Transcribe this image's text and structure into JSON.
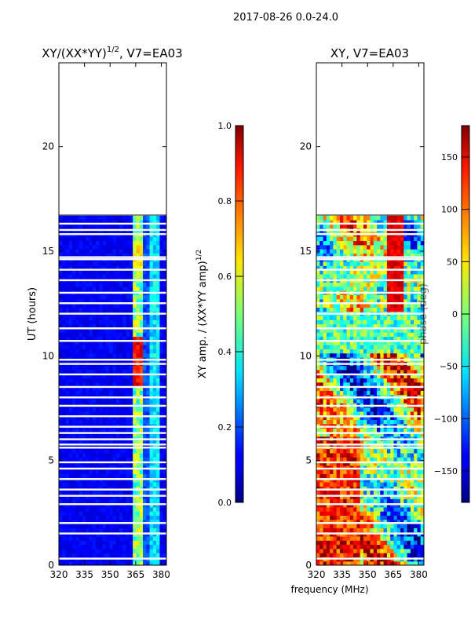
{
  "figure": {
    "suptitle": "2017-08-26 0.0-24.0",
    "shared_xlabel": "frequency (MHz)"
  },
  "chart_data": [
    {
      "type": "heatmap",
      "title_main": "XY/(XX*YY)",
      "title_exp": "1/2",
      "title_suffix": ", V7=EA03",
      "xlabel": "",
      "ylabel": "UT (hours)",
      "xlim": [
        320,
        383
      ],
      "ylim": [
        0,
        24
      ],
      "x_ticks": [
        320,
        335,
        350,
        365,
        380
      ],
      "y_ticks": [
        0,
        5,
        10,
        15,
        20
      ],
      "data_extent_hours": [
        0,
        16.7
      ],
      "colorbar": {
        "label_main": "XY amp. / (XX*YY amp)",
        "label_exp": "1/2",
        "range": [
          0.0,
          1.0
        ],
        "ticks": [
          "0.0",
          "0.2",
          "0.4",
          "0.6",
          "0.8",
          "1.0"
        ],
        "tick_values": [
          0,
          0.2,
          0.4,
          0.6,
          0.8,
          1.0
        ]
      },
      "colormap": "jet"
    },
    {
      "type": "heatmap",
      "title_main": "XY, V7=EA03",
      "xlabel": "frequency (MHz)",
      "ylabel": "",
      "xlim": [
        320,
        383
      ],
      "ylim": [
        0,
        24
      ],
      "x_ticks": [
        320,
        335,
        350,
        365,
        380
      ],
      "y_ticks": [
        0,
        5,
        10,
        15,
        20
      ],
      "data_extent_hours": [
        0,
        16.7
      ],
      "colorbar": {
        "label_main": "phase (deg)",
        "range": [
          -180,
          180
        ],
        "ticks": [
          "−150",
          "−100",
          "−50",
          "0",
          "50",
          "100",
          "150"
        ],
        "tick_values": [
          -150,
          -100,
          -50,
          0,
          50,
          100,
          150
        ]
      },
      "colormap": "jet"
    }
  ]
}
